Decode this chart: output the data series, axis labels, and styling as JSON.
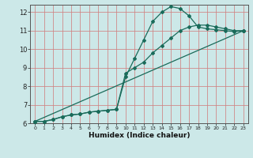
{
  "xlabel": "Humidex (Indice chaleur)",
  "bg_color": "#cce8e8",
  "grid_color_v": "#d08080",
  "grid_color_h": "#d08080",
  "line_color": "#1a6b5a",
  "xlim": [
    -0.5,
    23.5
  ],
  "ylim": [
    6,
    12.4
  ],
  "xticks": [
    0,
    1,
    2,
    3,
    4,
    5,
    6,
    7,
    8,
    9,
    10,
    11,
    12,
    13,
    14,
    15,
    16,
    17,
    18,
    19,
    20,
    21,
    22,
    23
  ],
  "yticks": [
    6,
    7,
    8,
    9,
    10,
    11,
    12
  ],
  "series1_x": [
    0,
    1,
    2,
    3,
    4,
    5,
    6,
    7,
    8,
    9,
    10,
    11,
    12,
    13,
    14,
    15,
    16,
    17,
    18,
    19,
    20,
    21,
    22,
    23
  ],
  "series1_y": [
    6.1,
    6.1,
    6.2,
    6.35,
    6.45,
    6.5,
    6.6,
    6.65,
    6.7,
    6.75,
    8.5,
    9.5,
    10.5,
    11.5,
    12.0,
    12.3,
    12.2,
    11.8,
    11.2,
    11.1,
    11.05,
    11.0,
    10.95,
    11.0
  ],
  "series2_x": [
    0,
    1,
    2,
    3,
    4,
    5,
    6,
    7,
    8,
    9,
    10,
    11,
    12,
    13,
    14,
    15,
    16,
    17,
    18,
    19,
    20,
    21,
    22,
    23
  ],
  "series2_y": [
    6.1,
    6.1,
    6.2,
    6.35,
    6.45,
    6.5,
    6.6,
    6.65,
    6.7,
    6.75,
    8.7,
    9.0,
    9.3,
    9.8,
    10.2,
    10.6,
    11.0,
    11.2,
    11.3,
    11.3,
    11.2,
    11.1,
    11.0,
    11.0
  ],
  "series3_x": [
    0,
    23
  ],
  "series3_y": [
    6.1,
    11.0
  ]
}
